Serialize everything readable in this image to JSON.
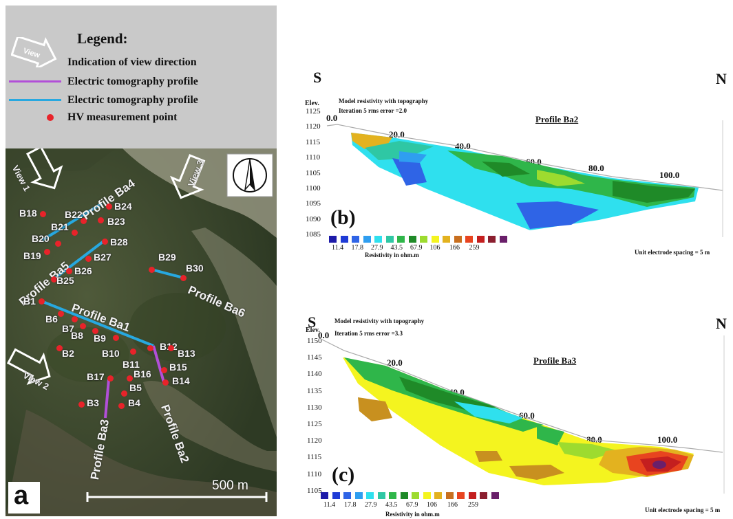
{
  "legend": {
    "title": "Legend:",
    "items": [
      {
        "label": "Indication of view direction",
        "icon": "view-arrow-icon",
        "arrow_text": "View"
      },
      {
        "label": "Electric tomography profile",
        "color": "#b24fd8"
      },
      {
        "label": "Electric tomography profile",
        "color": "#27a8e0"
      },
      {
        "label": "HV measurement  point",
        "color": "#e8232a"
      }
    ]
  },
  "map": {
    "panel_letter": "a",
    "scale_label": "500 m",
    "view_labels": [
      "View 1",
      "View 2",
      "View 3"
    ],
    "profiles": [
      "Profile Ba4",
      "Profile Ba5",
      "Profile Ba6",
      "Profile Ba1",
      "Profile Ba3",
      "Profile Ba2"
    ],
    "points": [
      "B18",
      "B22",
      "B24",
      "B21",
      "B23",
      "B20",
      "B28",
      "B19",
      "B27",
      "B26",
      "B25",
      "B29",
      "B30",
      "B1",
      "B6",
      "B7",
      "B8",
      "B9",
      "B10",
      "B12",
      "B13",
      "B11",
      "B2",
      "B15",
      "B17",
      "B16",
      "B14",
      "B5",
      "B3",
      "B4"
    ]
  },
  "panel_b": {
    "letter": "(b)",
    "dir_left": "S",
    "dir_right": "N",
    "model_line1": "Model resistivity with topography",
    "model_line2": "Iteration 5 rms  error =2.0",
    "elev_label": "Elev.",
    "elevations": [
      "1125",
      "1120",
      "1115",
      "1110",
      "1105",
      "1100",
      "1095",
      "1090",
      "1085"
    ],
    "distances": [
      "0.0",
      "20.0",
      "40.0",
      "60.0",
      "80.0",
      "100.0"
    ],
    "title": "Profile Ba2",
    "resistivity_ticks": [
      "11.4",
      "17.8",
      "27.9",
      "43.5",
      "67.9",
      "106",
      "166",
      "259"
    ],
    "resistivity_label": "Resistivity in ohm.m",
    "spacing_note": "Unit electrode spacing = 5 m"
  },
  "panel_c": {
    "letter": "(c)",
    "dir_left": "S",
    "dir_right": "N",
    "model_line1": "Model resistivity with topography",
    "model_line2": "Iteration 5 rms error =3.3",
    "elev_label": "Elev.",
    "elevations": [
      "1150",
      "1145",
      "1140",
      "1135",
      "1130",
      "1125",
      "1120",
      "1115",
      "1110",
      "1105"
    ],
    "distances": [
      "0.0",
      "20.0",
      "40.0",
      "60.0",
      "80.0",
      "100.0"
    ],
    "title": "Profile Ba3",
    "resistivity_ticks": [
      "11.4",
      "17.8",
      "27.9",
      "43.5",
      "67.9",
      "106",
      "166",
      "259"
    ],
    "resistivity_label": "Resistivity in ohm.m",
    "spacing_note": "Unit electrode spacing = 5 m"
  },
  "colors": {
    "scale": [
      "#1d1aa8",
      "#1f3bd6",
      "#2f64e6",
      "#2f9ef0",
      "#2fe0ee",
      "#2fc7a4",
      "#2fb64a",
      "#1f8a28",
      "#9ddb2f",
      "#f4f41f",
      "#e3b21f",
      "#c86f1f",
      "#e8441f",
      "#c41f1f",
      "#8b1f2f",
      "#6a1f6a"
    ]
  }
}
